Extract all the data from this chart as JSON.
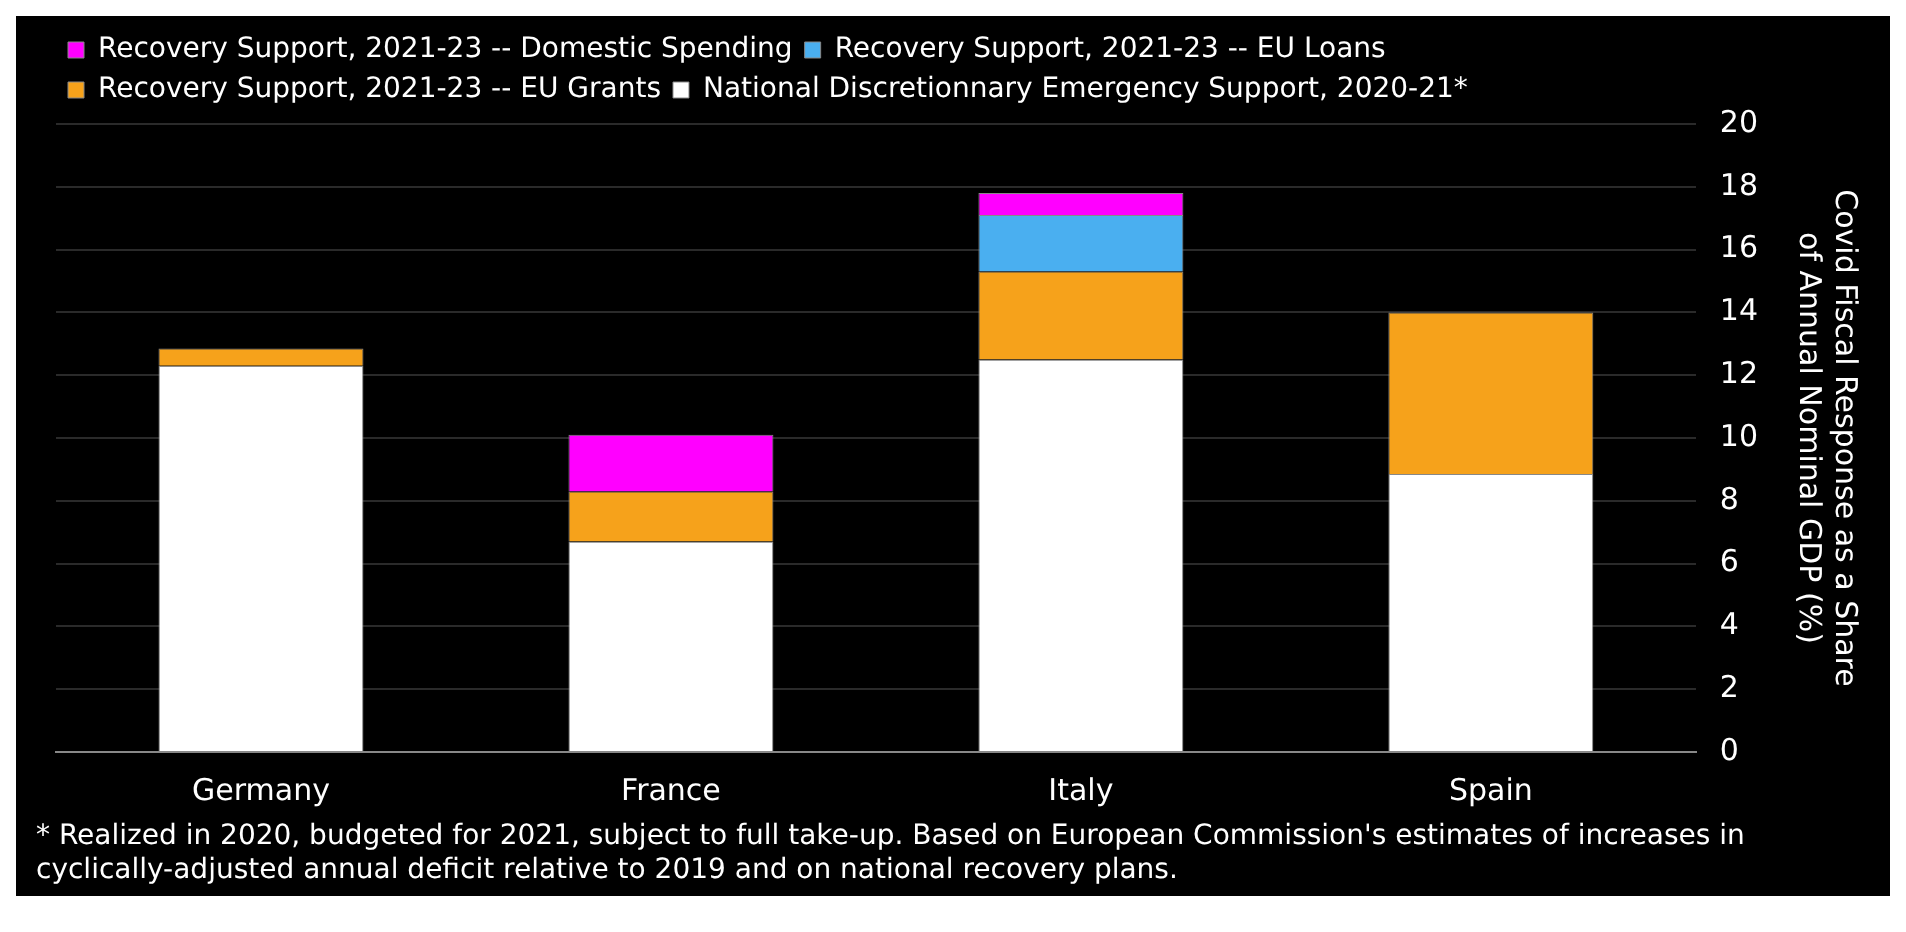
{
  "chart_data": {
    "type": "bar",
    "stacked": true,
    "ylabel": "Covid Fiscal Response as a Share of Annual Nominal GDP (%)",
    "categories": [
      "Germany",
      "France",
      "Italy",
      "Spain"
    ],
    "series": [
      {
        "name": "National Discretionnary Emergency Support, 2020-21*",
        "color": "#ffffff",
        "values": [
          12.3,
          6.7,
          12.5,
          8.85
        ]
      },
      {
        "name": "Recovery Support, 2021-23 -- EU Grants",
        "color": "#f6a21b",
        "values": [
          0.55,
          1.6,
          2.8,
          5.15
        ]
      },
      {
        "name": "Recovery Support, 2021-23 -- EU Loans",
        "color": "#4aaff0",
        "values": [
          0,
          0,
          1.8,
          0
        ]
      },
      {
        "name": "Recovery Support, 2021-23 -- Domestic Spending",
        "color": "#ff00ff",
        "values": [
          0,
          1.8,
          0.7,
          0
        ]
      }
    ],
    "ylim": [
      0,
      20
    ],
    "yticks": [
      0,
      2,
      4,
      6,
      8,
      10,
      12,
      14,
      16,
      18,
      20
    ],
    "grid": "y",
    "legend": "top left",
    "annotations": [
      "* Realized in 2020, budgeted for 2021, subject to full take-up. Based on European Commission's estimates of increases in cyclically-adjusted annual deficit relative to 2019 and on national recovery plans."
    ]
  }
}
